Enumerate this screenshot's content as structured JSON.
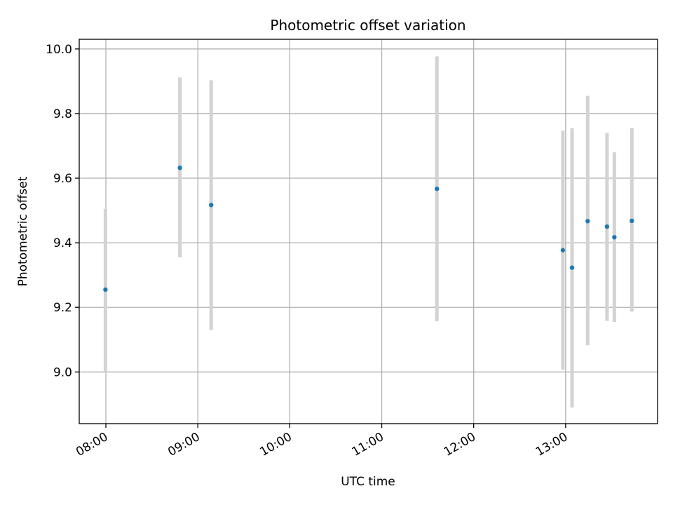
{
  "chart_data": {
    "type": "scatter",
    "title": "Photometric offset variation",
    "xlabel": "UTC time",
    "ylabel": "Photometric offset",
    "grid": true,
    "x_unit": "hours_utc",
    "xlim": [
      7.71,
      14.0
    ],
    "ylim": [
      8.84,
      10.03
    ],
    "x_ticks": [
      8,
      9,
      10,
      11,
      12,
      13
    ],
    "x_tick_labels": [
      "08:00",
      "09:00",
      "10:00",
      "11:00",
      "12:00",
      "13:00"
    ],
    "y_ticks": [
      9.0,
      9.2,
      9.4,
      9.6,
      9.8,
      10.0
    ],
    "y_tick_labels": [
      "9.0",
      "9.2",
      "9.4",
      "9.6",
      "9.8",
      "10.0"
    ],
    "point_color": "#1f77b4",
    "errorbar_color": "#d3d3d3",
    "grid_color": "#b0b0b0",
    "points": [
      {
        "x": 7.995,
        "y": 9.255,
        "low": 9.0,
        "high": 9.505
      },
      {
        "x": 8.805,
        "y": 9.632,
        "low": 9.355,
        "high": 9.912
      },
      {
        "x": 9.145,
        "y": 9.517,
        "low": 9.13,
        "high": 9.903
      },
      {
        "x": 11.6,
        "y": 9.567,
        "low": 9.157,
        "high": 9.977
      },
      {
        "x": 12.97,
        "y": 9.377,
        "low": 9.007,
        "high": 9.747
      },
      {
        "x": 13.07,
        "y": 9.323,
        "low": 8.89,
        "high": 9.755
      },
      {
        "x": 13.24,
        "y": 9.467,
        "low": 9.083,
        "high": 9.855
      },
      {
        "x": 13.45,
        "y": 9.45,
        "low": 9.158,
        "high": 9.74
      },
      {
        "x": 13.53,
        "y": 9.417,
        "low": 9.155,
        "high": 9.68
      },
      {
        "x": 13.72,
        "y": 9.468,
        "low": 9.187,
        "high": 9.755
      }
    ]
  }
}
